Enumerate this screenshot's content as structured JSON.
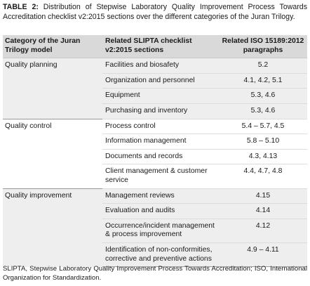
{
  "caption": {
    "label": "TABLE 2:",
    "text": "Distribution of Stepwise Laboratory Quality Improvement Process Towards Accreditation checklist v2:2015 sections over the different categories of the Juran Trilogy."
  },
  "table": {
    "headers": [
      "Category of the Juran Trilogy model",
      "Related SLIPTA checklist v2:2015 sections",
      "Related ISO 15189:2012 paragraphs"
    ],
    "groups": [
      {
        "category": "Quality planning",
        "rows": [
          {
            "section": "Facilities and biosafety",
            "paragraphs": "5.2"
          },
          {
            "section": "Organization and personnel",
            "paragraphs": "4.1, 4.2, 5.1"
          },
          {
            "section": "Equipment",
            "paragraphs": "5.3, 4.6"
          },
          {
            "section": "Purchasing and inventory",
            "paragraphs": "5.3, 4.6"
          }
        ]
      },
      {
        "category": "Quality control",
        "rows": [
          {
            "section": "Process control",
            "paragraphs": "5.4 – 5.7, 4.5"
          },
          {
            "section": "Information management",
            "paragraphs": "5.8 – 5.10"
          },
          {
            "section": "Documents and records",
            "paragraphs": "4.3, 4.13"
          },
          {
            "section": "Client management & customer service",
            "paragraphs": "4.4, 4.7, 4.8"
          }
        ]
      },
      {
        "category": "Quality improvement",
        "rows": [
          {
            "section": "Management reviews",
            "paragraphs": "4.15"
          },
          {
            "section": "Evaluation and audits",
            "paragraphs": "4.14"
          },
          {
            "section": "Occurrence/incident management & process improvement",
            "paragraphs": "4.12"
          },
          {
            "section": "Identification of non-conformities, corrective and preventive actions",
            "paragraphs": "4.9 – 4.11"
          }
        ]
      }
    ]
  },
  "footnote": "SLIPTA, Stepwise Laboratory Quality Improvement Process Towards Accreditation; ISO, International Organization for Standardization."
}
